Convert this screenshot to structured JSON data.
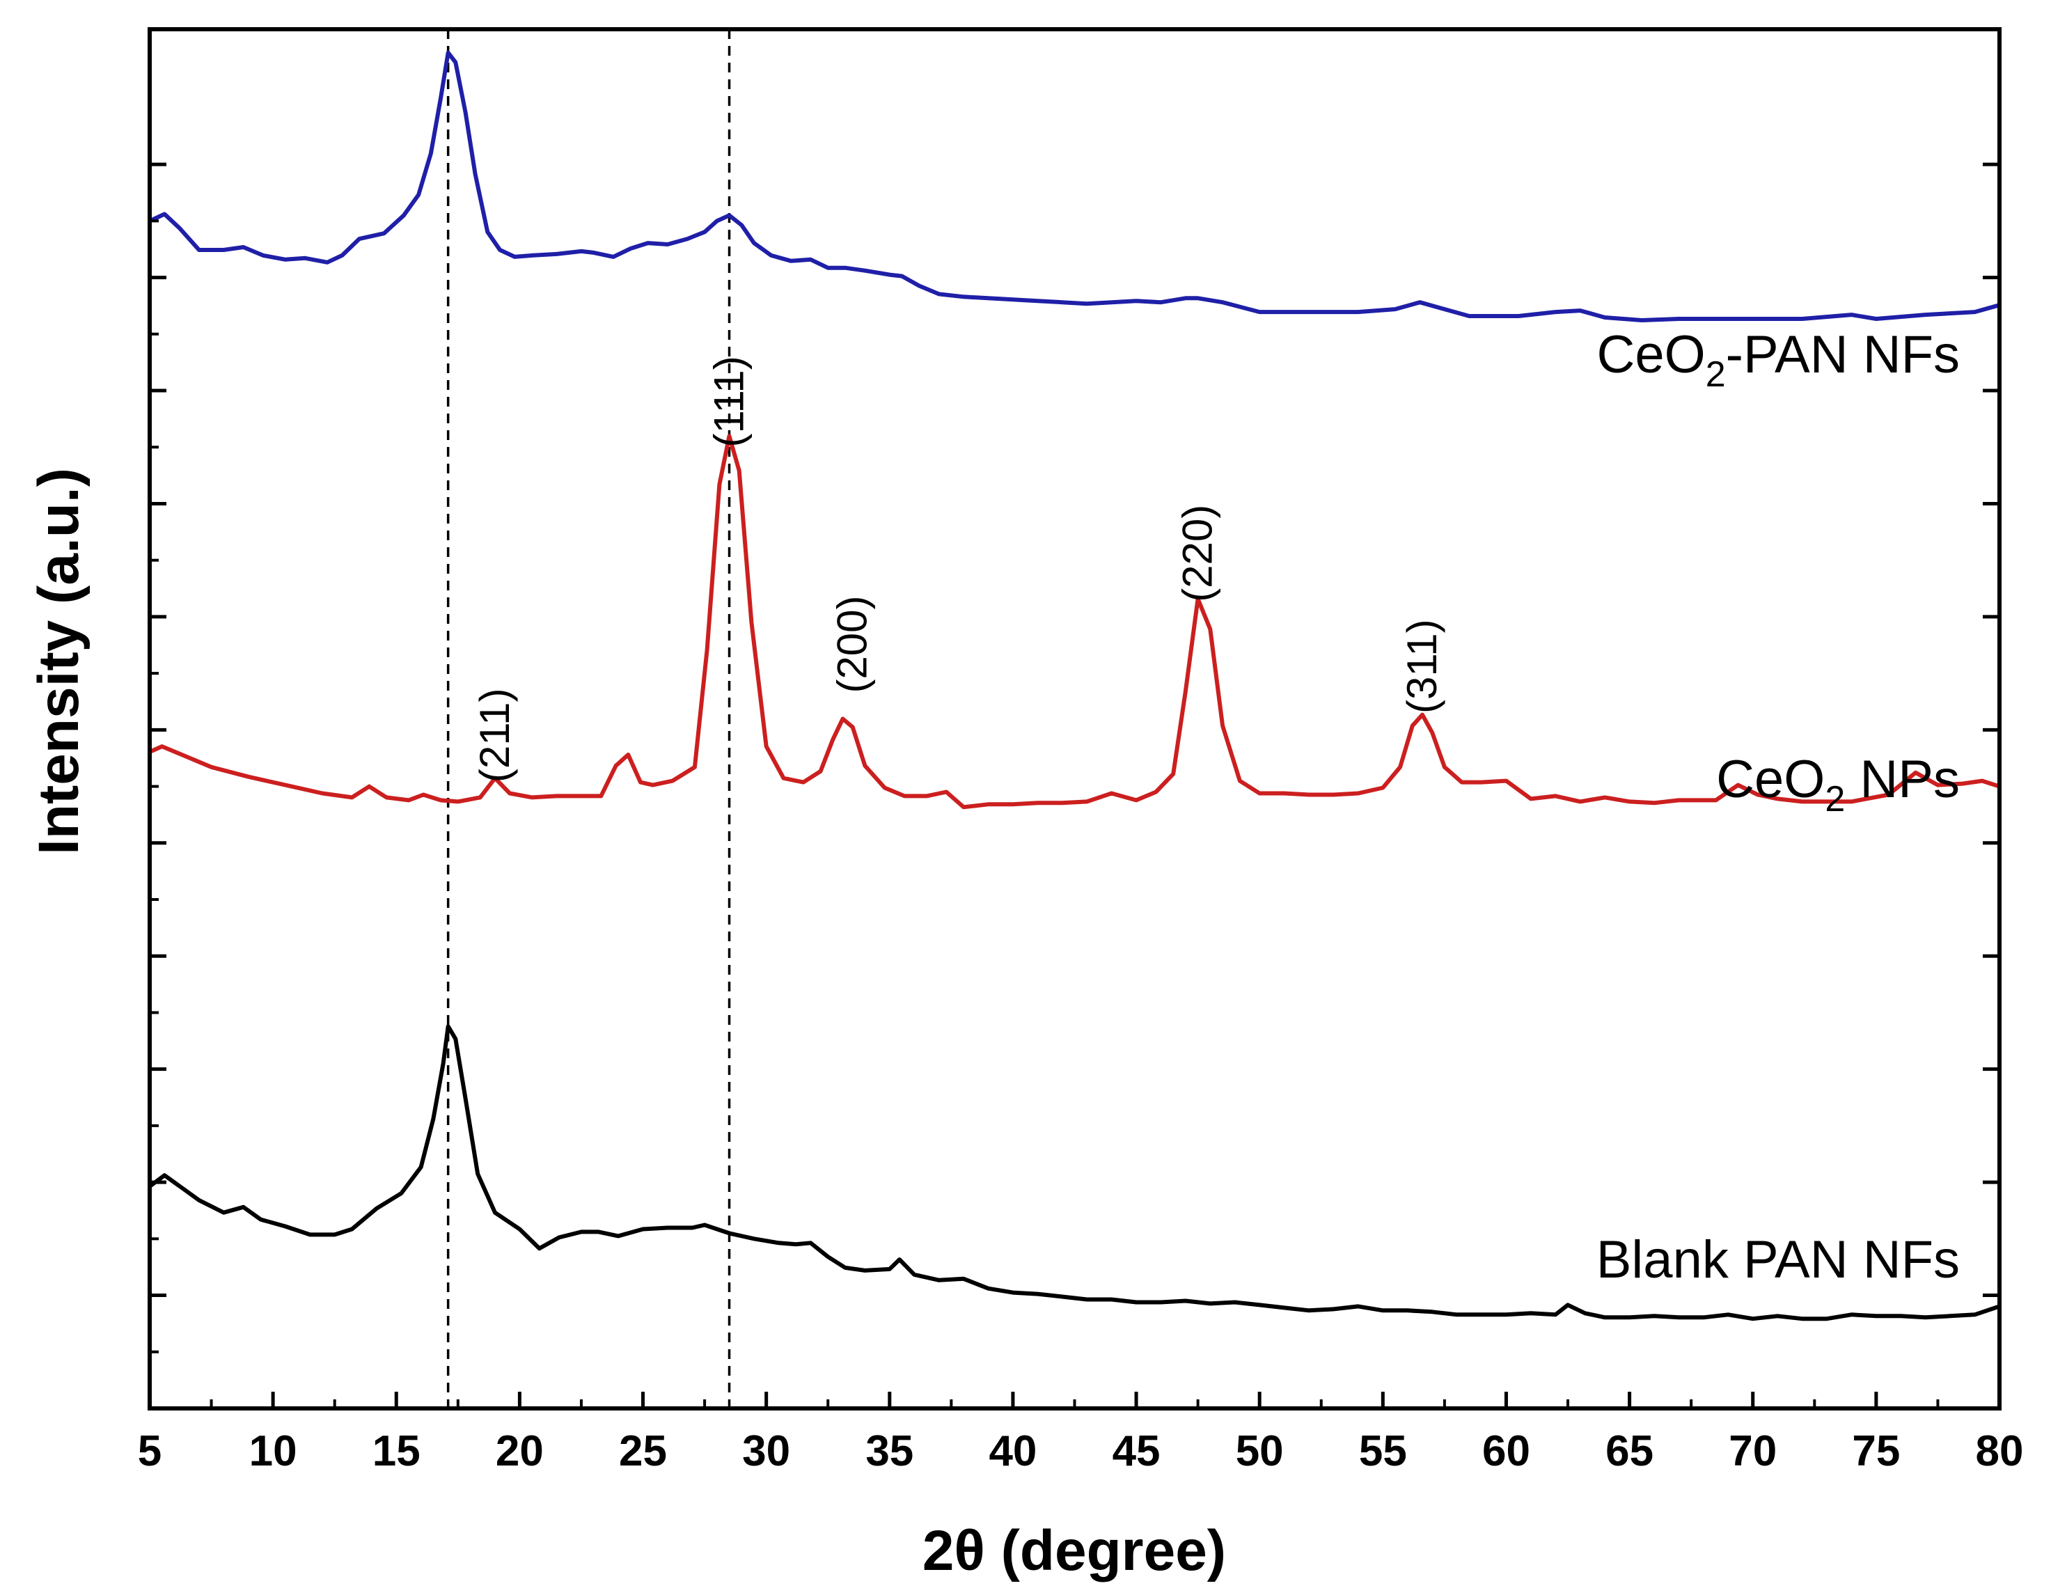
{
  "chart_data": {
    "type": "line",
    "title": "",
    "xlabel": "2θ (degree)",
    "ylabel": "Intensity (a.u.)",
    "xlim": [
      5,
      80
    ],
    "ylim": [
      0,
      100
    ],
    "xticks": [
      5,
      10,
      15,
      20,
      25,
      30,
      35,
      40,
      45,
      50,
      55,
      60,
      65,
      70,
      75,
      80
    ],
    "y_tick_labels_shown": false,
    "reference_lines_x": [
      17.1,
      28.5
    ],
    "series": [
      {
        "name": "CeO2-PAN NFs",
        "label_main": "CeO",
        "label_sub": "2",
        "label_rest": "-PAN NFs",
        "color": "#1f1fa8",
        "x": [
          5,
          5.6,
          6.2,
          7,
          8,
          8.8,
          9.6,
          10.5,
          11.3,
          12.2,
          12.8,
          13.5,
          14.5,
          15.3,
          15.9,
          16.4,
          16.8,
          17.1,
          17.4,
          17.8,
          18.2,
          18.7,
          19.2,
          19.8,
          20.5,
          21.5,
          22.5,
          23,
          23.8,
          24.5,
          25.2,
          26,
          26.8,
          27.5,
          28,
          28.5,
          29,
          29.5,
          30.2,
          31,
          31.8,
          32.5,
          33.2,
          34,
          35,
          35.5,
          36.2,
          37,
          38,
          39,
          40,
          41,
          42,
          43,
          44,
          45,
          46,
          47,
          47.5,
          48.5,
          50,
          52,
          54,
          55.5,
          56.5,
          57.5,
          58.5,
          59.5,
          60.5,
          62,
          63,
          64,
          65.5,
          67,
          69,
          72,
          74,
          75,
          77,
          79,
          80
        ],
        "values": [
          86.1,
          86.6,
          85.6,
          84.0,
          84.0,
          84.2,
          83.6,
          83.3,
          83.4,
          83.1,
          83.6,
          84.8,
          85.2,
          86.5,
          88.0,
          91.0,
          95.0,
          98.3,
          97.6,
          94.0,
          89.5,
          85.3,
          84.0,
          83.5,
          83.6,
          83.7,
          83.9,
          83.8,
          83.5,
          84.1,
          84.5,
          84.4,
          84.8,
          85.3,
          86.1,
          86.5,
          85.8,
          84.5,
          83.6,
          83.2,
          83.3,
          82.7,
          82.7,
          82.5,
          82.2,
          82.1,
          81.4,
          80.8,
          80.6,
          80.5,
          80.4,
          80.3,
          80.2,
          80.1,
          80.2,
          80.3,
          80.2,
          80.5,
          80.5,
          80.2,
          79.5,
          79.5,
          79.5,
          79.7,
          80.2,
          79.7,
          79.2,
          79.2,
          79.2,
          79.5,
          79.6,
          79.1,
          78.9,
          79.0,
          79.0,
          79.0,
          79.3,
          79.0,
          79.3,
          79.5,
          80.0
        ]
      },
      {
        "name": "CeO2 NPs",
        "label_main": "CeO",
        "label_sub": "2",
        "label_rest": " NPs",
        "color": "#cc1f1f",
        "x": [
          5,
          5.5,
          6.3,
          7.5,
          9,
          10.5,
          12,
          13.2,
          13.9,
          14.6,
          15.5,
          16.1,
          16.8,
          17.5,
          18.4,
          19.0,
          19.6,
          20.5,
          21.5,
          23.3,
          23.9,
          24.4,
          24.9,
          25.4,
          26.2,
          27.1,
          27.6,
          28.1,
          28.5,
          28.9,
          29.4,
          30,
          30.7,
          31.5,
          32.2,
          32.7,
          33.1,
          33.5,
          34,
          34.8,
          35.6,
          36.5,
          37.3,
          38,
          39,
          40,
          41,
          42,
          43,
          44,
          45,
          45.8,
          46.5,
          47.0,
          47.5,
          48.0,
          48.5,
          49.2,
          50,
          51,
          52,
          53,
          54,
          55,
          55.7,
          56.2,
          56.6,
          57.0,
          57.5,
          58.2,
          59,
          60,
          61,
          62,
          63,
          64,
          65,
          66,
          67,
          68.5,
          69.4,
          70.2,
          71,
          72,
          74,
          75.5,
          76.6,
          77.5,
          78.5,
          79.3,
          80
        ],
        "values": [
          47.6,
          48.0,
          47.4,
          46.5,
          45.8,
          45.2,
          44.6,
          44.3,
          45.1,
          44.3,
          44.1,
          44.5,
          44.1,
          44.0,
          44.3,
          45.7,
          44.6,
          44.3,
          44.4,
          44.4,
          46.6,
          47.4,
          45.4,
          45.2,
          45.5,
          46.5,
          55.0,
          67.0,
          70.5,
          68.0,
          57.0,
          48.0,
          45.7,
          45.4,
          46.2,
          48.5,
          50.0,
          49.4,
          46.6,
          45.0,
          44.4,
          44.4,
          44.7,
          43.6,
          43.8,
          43.8,
          43.9,
          43.9,
          44.0,
          44.6,
          44.1,
          44.7,
          46.0,
          52.0,
          58.7,
          56.5,
          49.5,
          45.5,
          44.6,
          44.6,
          44.5,
          44.5,
          44.6,
          45.0,
          46.5,
          49.5,
          50.3,
          49.0,
          46.5,
          45.4,
          45.4,
          45.5,
          44.2,
          44.4,
          44.0,
          44.3,
          44.0,
          43.9,
          44.1,
          44.1,
          45.2,
          44.5,
          44.2,
          44.0,
          44.0,
          44.5,
          46.1,
          45.2,
          45.3,
          45.5,
          45.1
        ]
      },
      {
        "name": "Blank PAN NFs",
        "color": "#000000",
        "x": [
          5,
          5.6,
          6.3,
          7,
          8,
          8.8,
          9.5,
          10.5,
          11.5,
          12.5,
          13.2,
          14.2,
          15.2,
          16,
          16.5,
          16.9,
          17.1,
          17.4,
          17.8,
          18.3,
          19,
          20,
          20.8,
          21.6,
          22.5,
          23.2,
          24,
          25,
          26,
          27,
          27.5,
          28.5,
          29.5,
          30.5,
          31.2,
          31.8,
          32.5,
          33.2,
          34,
          35,
          35.4,
          36,
          37,
          38,
          39,
          40,
          41,
          42,
          43,
          44,
          45,
          46,
          47,
          48,
          49,
          50,
          51,
          52,
          53,
          54,
          55,
          56,
          57,
          58,
          59,
          60,
          61,
          62,
          62.5,
          63.2,
          64,
          65,
          66,
          67,
          68,
          69,
          70,
          71,
          72,
          73,
          74,
          75,
          76,
          77,
          78,
          79,
          80
        ],
        "values": [
          16.1,
          16.9,
          16.0,
          15.1,
          14.2,
          14.6,
          13.7,
          13.2,
          12.6,
          12.6,
          13.0,
          14.5,
          15.6,
          17.5,
          21.0,
          25.0,
          27.7,
          26.8,
          22.5,
          17.0,
          14.2,
          13.0,
          11.6,
          12.4,
          12.8,
          12.8,
          12.5,
          13.0,
          13.1,
          13.1,
          13.3,
          12.7,
          12.3,
          12.0,
          11.9,
          12.0,
          11.0,
          10.2,
          10.0,
          10.1,
          10.8,
          9.7,
          9.3,
          9.4,
          8.7,
          8.4,
          8.3,
          8.1,
          7.9,
          7.9,
          7.7,
          7.7,
          7.8,
          7.6,
          7.7,
          7.5,
          7.3,
          7.1,
          7.2,
          7.4,
          7.1,
          7.1,
          7.0,
          6.8,
          6.8,
          6.8,
          6.9,
          6.8,
          7.5,
          6.9,
          6.6,
          6.6,
          6.7,
          6.6,
          6.6,
          6.8,
          6.5,
          6.7,
          6.5,
          6.5,
          6.8,
          6.7,
          6.7,
          6.6,
          6.7,
          6.8,
          7.4
        ]
      }
    ],
    "annotations": [
      {
        "text": "(211)",
        "x": 19.0,
        "y": 48.8
      },
      {
        "text": "(111)",
        "x": 28.5,
        "y": 73.0
      },
      {
        "text": "(200)",
        "x": 33.5,
        "y": 55.4
      },
      {
        "text": "(220)",
        "x": 47.5,
        "y": 62.0
      },
      {
        "text": "(311)",
        "x": 56.6,
        "y": 53.8
      }
    ]
  }
}
